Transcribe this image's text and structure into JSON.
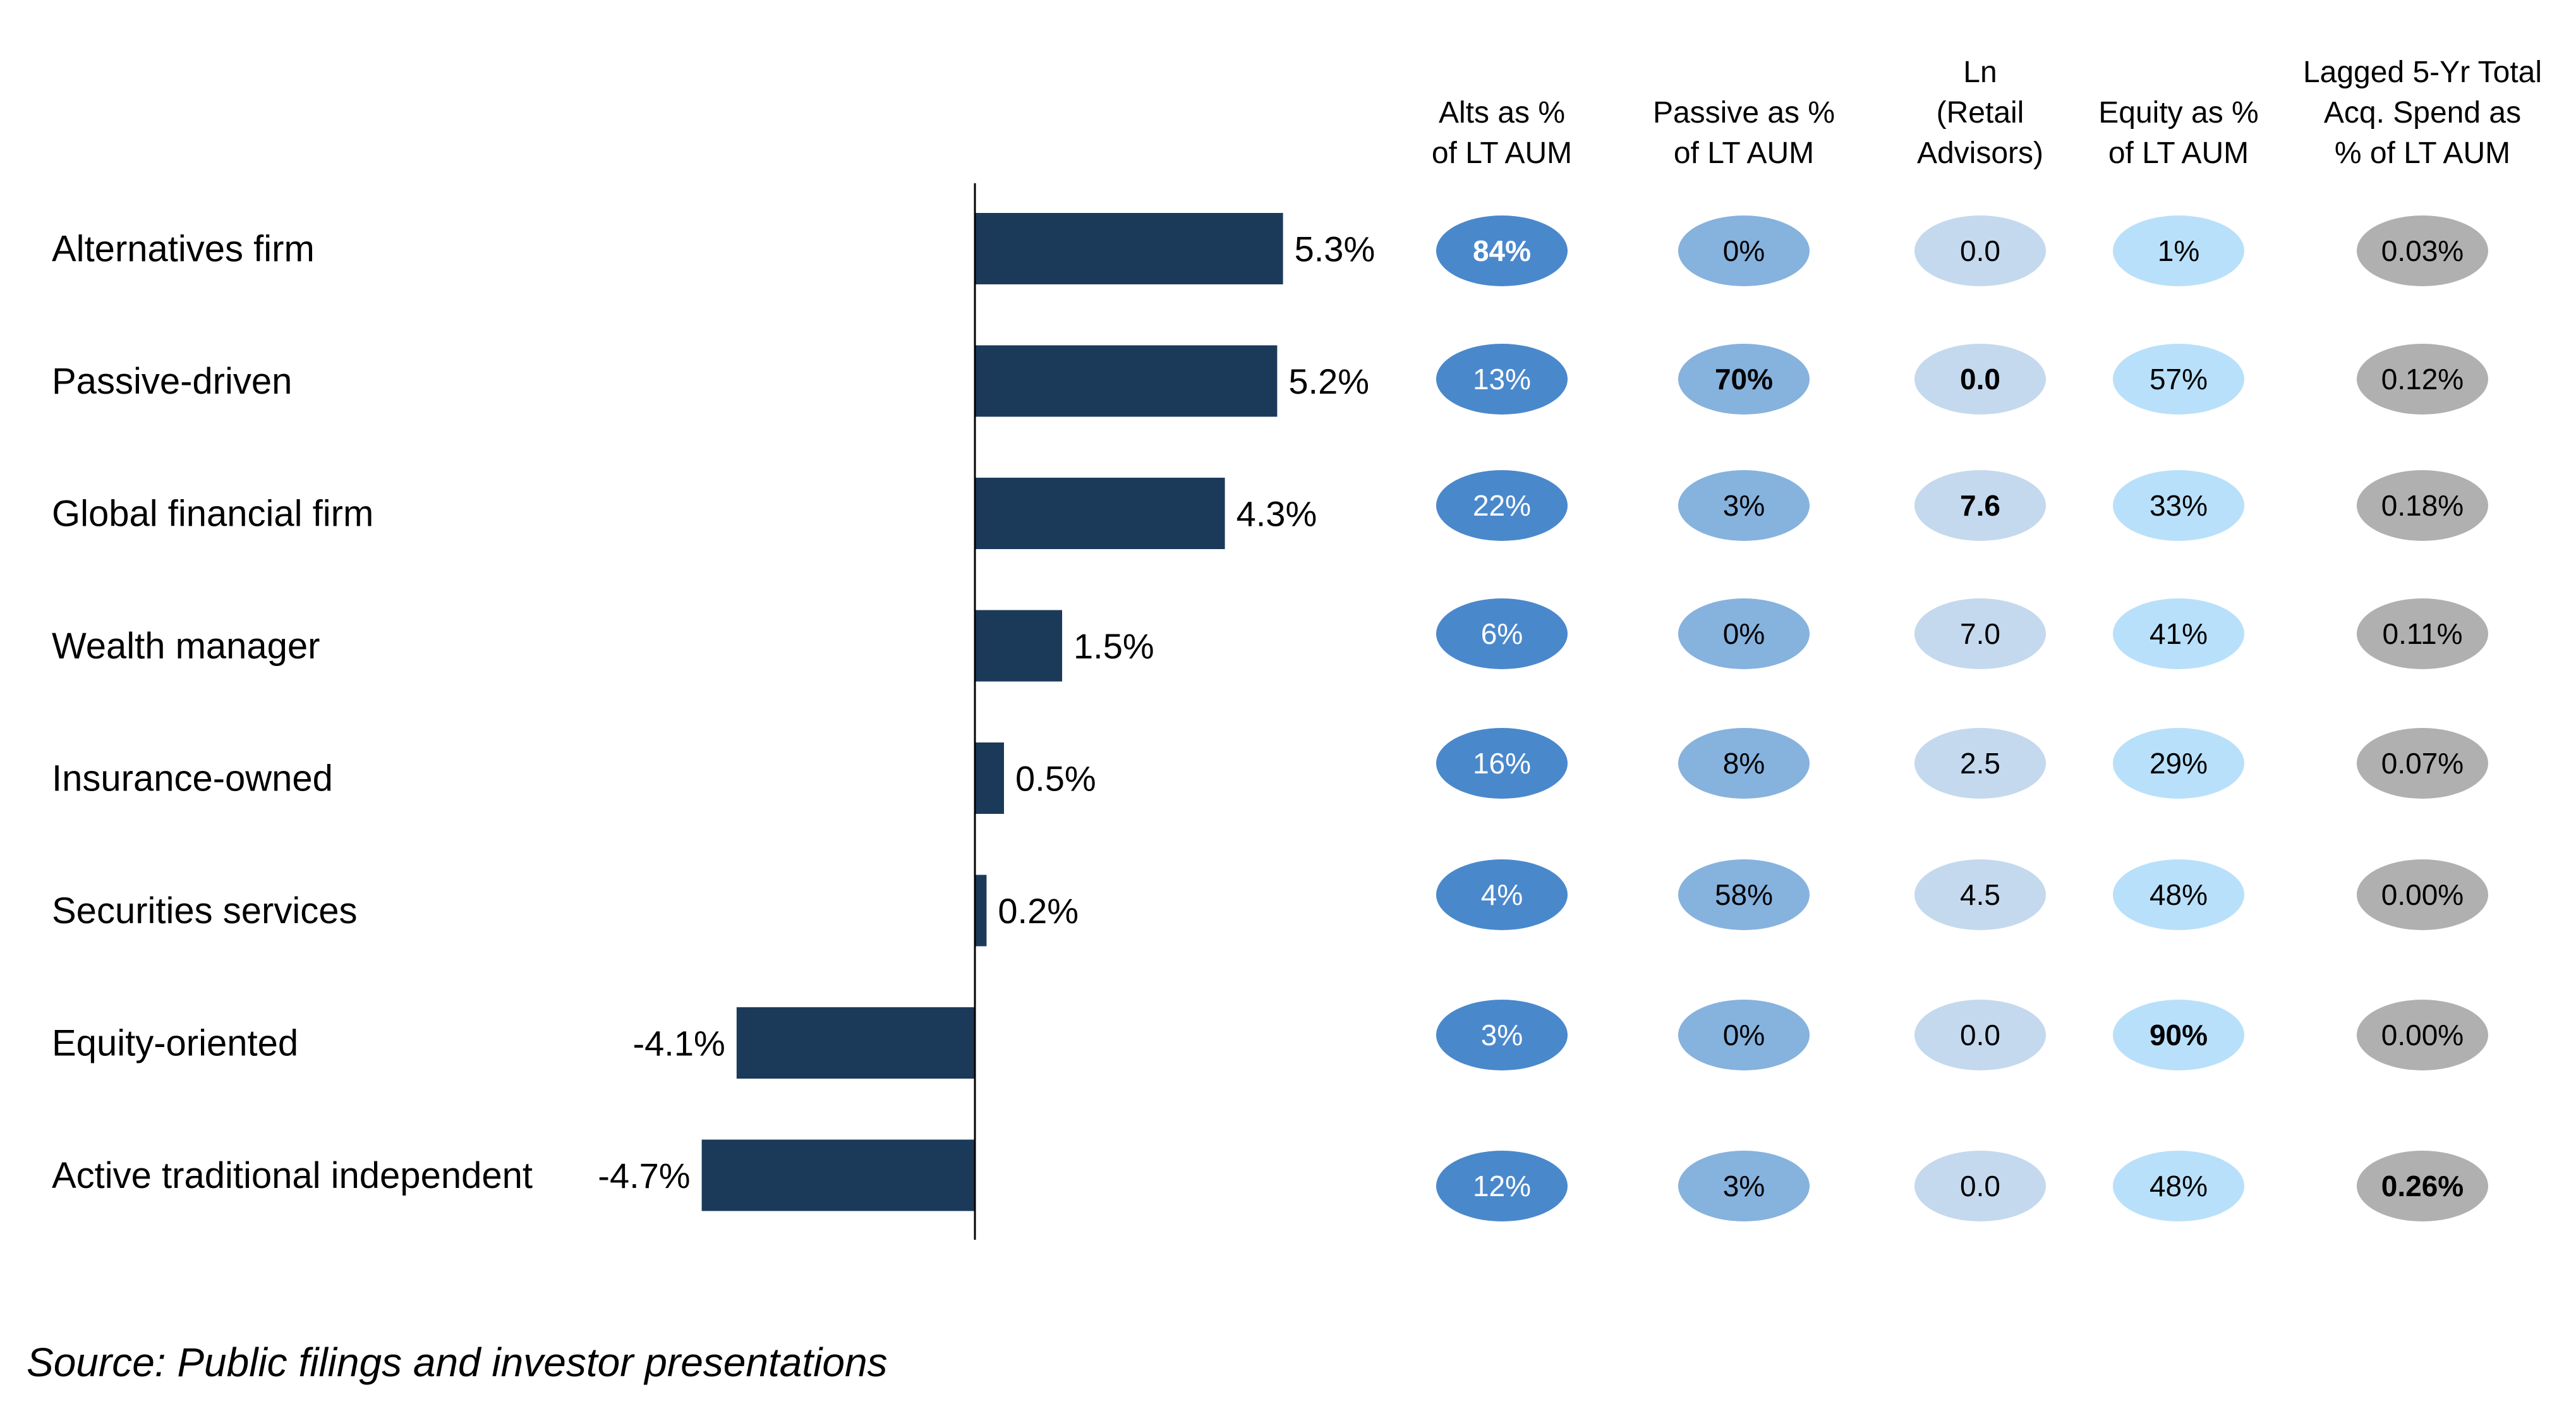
{
  "chart_data": {
    "type": "bar",
    "orientation": "horizontal",
    "categories": [
      "Alternatives firm",
      "Passive-driven",
      "Global financial firm",
      "Wealth manager",
      "Insurance-owned",
      "Securities services",
      "Equity-oriented",
      "Active traditional independent"
    ],
    "values": [
      5.3,
      5.2,
      4.3,
      1.5,
      0.5,
      0.2,
      -4.1,
      -4.7
    ],
    "value_labels": [
      "5.3%",
      "5.2%",
      "4.3%",
      "1.5%",
      "0.5%",
      "0.2%",
      "-4.1%",
      "-4.7%"
    ],
    "bar_color": "#1b3a5a",
    "xlim": [
      -4.7,
      5.3
    ],
    "grid": false,
    "table": {
      "columns": [
        {
          "header": [
            "Alts as %",
            "of LT AUM"
          ],
          "color": "#4a88cc",
          "text_color": "#ffffff",
          "cells": [
            "84%",
            "13%",
            "22%",
            "6%",
            "16%",
            "4%",
            "3%",
            "12%"
          ],
          "bold": [
            true,
            false,
            false,
            false,
            false,
            false,
            false,
            false
          ]
        },
        {
          "header": [
            "Passive as %",
            "of LT AUM"
          ],
          "color": "#86b2de",
          "text_color": "#000000",
          "cells": [
            "0%",
            "70%",
            "3%",
            "0%",
            "8%",
            "58%",
            "0%",
            "3%"
          ],
          "bold": [
            false,
            true,
            false,
            false,
            false,
            false,
            false,
            false
          ]
        },
        {
          "header": [
            "Ln",
            "(Retail",
            "Advisors)"
          ],
          "color": "#c4d9ee",
          "text_color": "#000000",
          "cells": [
            "0.0",
            "0.0",
            "7.6",
            "7.0",
            "2.5",
            "4.5",
            "0.0",
            "0.0"
          ],
          "bold": [
            false,
            true,
            true,
            false,
            false,
            false,
            false,
            false
          ]
        },
        {
          "header": [
            "Equity as %",
            "of LT AUM"
          ],
          "color": "#b9e0fa",
          "text_color": "#000000",
          "cells": [
            "1%",
            "57%",
            "33%",
            "41%",
            "29%",
            "48%",
            "90%",
            "48%"
          ],
          "bold": [
            false,
            false,
            false,
            false,
            false,
            false,
            true,
            false
          ]
        },
        {
          "header": [
            "Lagged 5-Yr Total",
            "Acq. Spend as",
            "% of LT AUM"
          ],
          "color": "#b0b0b0",
          "text_color": "#000000",
          "cells": [
            "0.03%",
            "0.12%",
            "0.18%",
            "0.11%",
            "0.07%",
            "0.00%",
            "0.00%",
            "0.26%"
          ],
          "bold": [
            false,
            false,
            false,
            false,
            false,
            false,
            false,
            true
          ]
        }
      ]
    }
  },
  "footer": {
    "source": "Source: Public filings and investor presentations"
  }
}
